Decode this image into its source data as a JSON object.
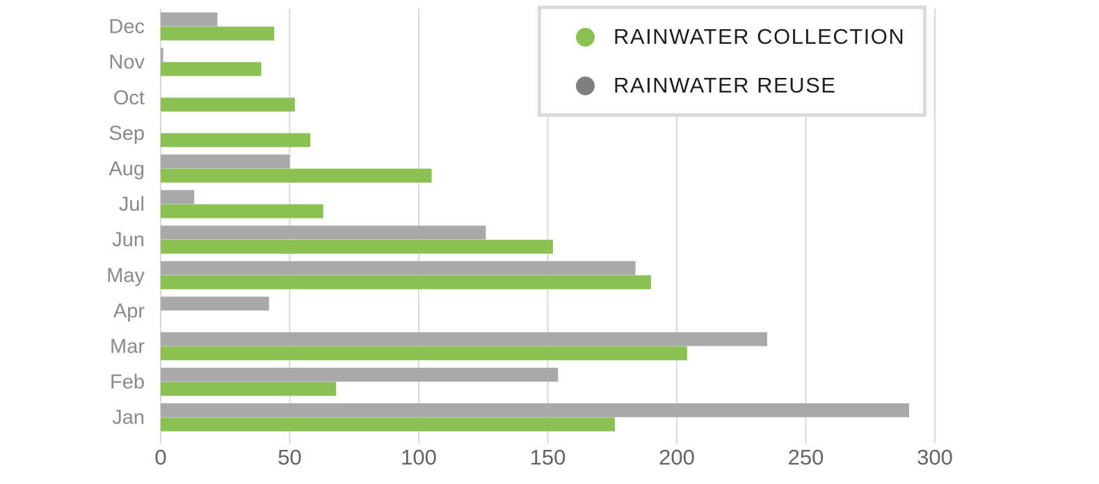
{
  "chart_data": {
    "type": "bar",
    "orientation": "horizontal",
    "title": "",
    "xlabel": "",
    "ylabel": "",
    "xlim": [
      0,
      300
    ],
    "xticks": [
      0,
      50,
      100,
      150,
      200,
      250,
      300
    ],
    "grid": "vertical-lines-on",
    "legend_position": "top-right-boxed",
    "categories_top_to_bottom": [
      "Dec",
      "Nov",
      "Oct",
      "Sep",
      "Aug",
      "Jul",
      "Jun",
      "May",
      "Apr",
      "Mar",
      "Feb",
      "Jan"
    ],
    "series": [
      {
        "name": "RAINWATER COLLECTION",
        "bar_color": "#8bc053",
        "legend_dot_color": "#8bc053",
        "values": [
          44,
          39,
          52,
          58,
          105,
          63,
          152,
          190,
          0,
          204,
          68,
          176
        ]
      },
      {
        "name": "RAINWATER REUSE",
        "bar_color": "#a9a9a9",
        "legend_dot_color": "#7f7f7f",
        "values": [
          22,
          1,
          0,
          0,
          50,
          13,
          126,
          184,
          42,
          235,
          154,
          290
        ]
      }
    ],
    "colors": {
      "gridline": "#d9d9d9",
      "month_label": "#8a8a8a",
      "tick_label": "#636363",
      "legend_border": "#dadada",
      "legend_text": "#1e1e1e"
    }
  }
}
